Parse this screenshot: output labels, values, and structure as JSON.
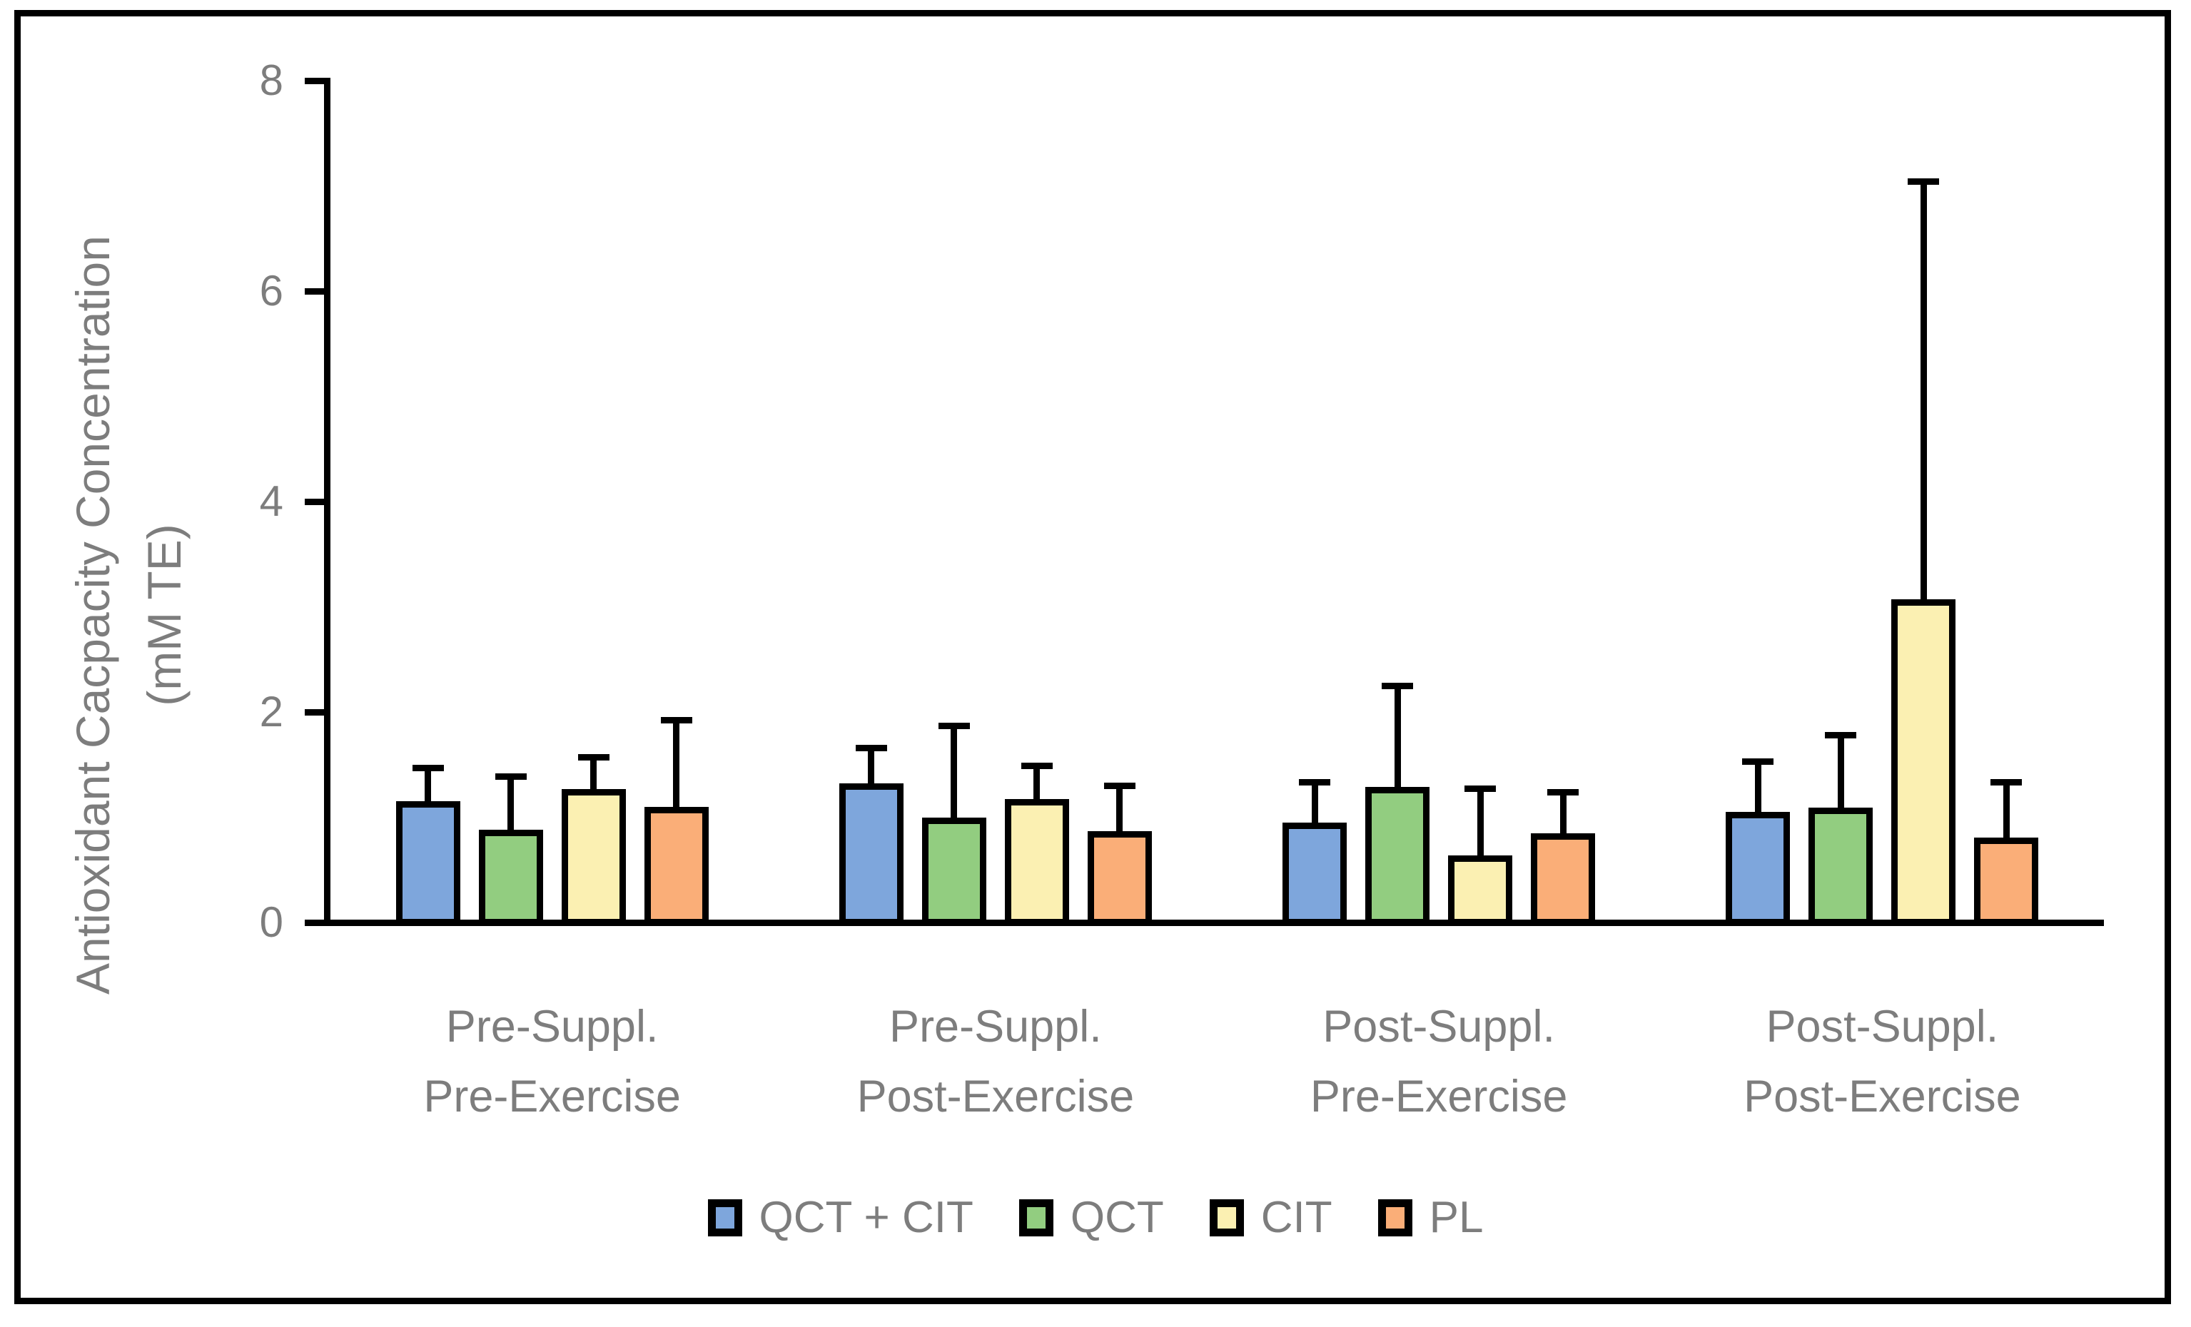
{
  "y_axis_title_line1": "Antioxidant Cacpacity Concentration",
  "y_axis_title_line2": "(mM TE)",
  "chart_data": {
    "type": "bar",
    "title": "",
    "ylabel": "Antioxidant Cacpacity Concentration (mM TE)",
    "xlabel": "",
    "ylim": [
      0,
      8
    ],
    "yticks": [
      0,
      2,
      4,
      6,
      8
    ],
    "ytick_labels": [
      "0",
      "2",
      "4",
      "6",
      "8"
    ],
    "grid": false,
    "legend_position": "bottom",
    "error_direction": "up",
    "text_color": "#7d7d7d",
    "axis_color": "#000000",
    "categories": [
      [
        "Pre-Suppl.",
        "Pre-Exercise"
      ],
      [
        "Pre-Suppl.",
        "Post-Exercise"
      ],
      [
        "Post-Suppl.",
        "Pre-Exercise"
      ],
      [
        "Post-Suppl.",
        "Post-Exercise"
      ]
    ],
    "series": [
      {
        "name": "QCT + CIT",
        "color": "#7ea6dc",
        "values": [
          1.15,
          1.32,
          0.95,
          1.05
        ],
        "errors": [
          0.35,
          0.37,
          0.41,
          0.51
        ]
      },
      {
        "name": "QCT",
        "color": "#92cd80",
        "values": [
          0.88,
          1.0,
          1.29,
          1.09
        ],
        "errors": [
          0.54,
          0.9,
          0.99,
          0.72
        ]
      },
      {
        "name": "CIT",
        "color": "#fbf0b2",
        "values": [
          1.27,
          1.17,
          0.64,
          3.07
        ],
        "errors": [
          0.33,
          0.35,
          0.66,
          4.0
        ]
      },
      {
        "name": "PL",
        "color": "#faae78",
        "values": [
          1.1,
          0.87,
          0.85,
          0.81
        ],
        "errors": [
          0.85,
          0.46,
          0.42,
          0.55
        ]
      }
    ]
  }
}
